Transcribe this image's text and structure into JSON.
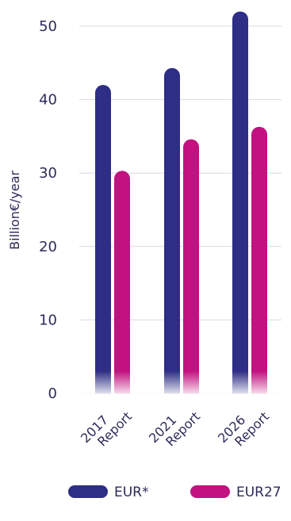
{
  "chart_data": {
    "type": "bar",
    "categories": [
      [
        "2017",
        "Report"
      ],
      [
        "2021",
        "Report"
      ],
      [
        "2026",
        "Report"
      ]
    ],
    "series": [
      {
        "name": "EUR*",
        "values": [
          42,
          44.3,
          52
        ],
        "color": "#2e2e86"
      },
      {
        "name": "EUR27",
        "values": [
          30.3,
          34.6,
          36.3
        ],
        "color": "#c2127f"
      }
    ],
    "ylabel": "Billion€/year",
    "ylim": [
      0,
      52
    ],
    "yticks": [
      0,
      10,
      20,
      30,
      40,
      50
    ],
    "grid": true,
    "legend_position": "bottom-right"
  }
}
